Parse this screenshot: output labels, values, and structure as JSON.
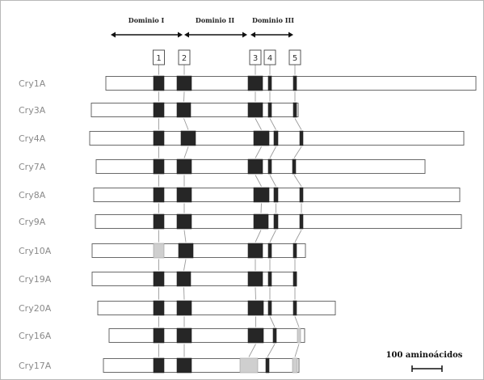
{
  "domains": [
    {
      "label": "Dominio I"
    },
    {
      "label": "Dominio II"
    },
    {
      "label": "Dominio III"
    }
  ],
  "blocks": [
    "1",
    "2",
    "3",
    "4",
    "5"
  ],
  "proteins": [
    {
      "name": "Cry1A",
      "blocks": [
        "dark",
        "dark",
        "dark",
        "dark",
        "dark"
      ]
    },
    {
      "name": "Cry3A",
      "blocks": [
        "dark",
        "dark",
        "dark",
        "dark",
        "dark"
      ]
    },
    {
      "name": "Cry4A",
      "blocks": [
        "dark",
        "dark",
        "dark",
        "dark",
        "dark"
      ]
    },
    {
      "name": "Cry7A",
      "blocks": [
        "dark",
        "dark",
        "dark",
        "dark",
        "dark"
      ]
    },
    {
      "name": "Cry8A",
      "blocks": [
        "dark",
        "dark",
        "dark",
        "dark",
        "dark"
      ]
    },
    {
      "name": "Cry9A",
      "blocks": [
        "dark",
        "dark",
        "dark",
        "dark",
        "dark"
      ]
    },
    {
      "name": "Cry10A",
      "blocks": [
        "light",
        "dark",
        "dark",
        "dark",
        "dark"
      ]
    },
    {
      "name": "Cry19A",
      "blocks": [
        "dark",
        "dark",
        "dark",
        "dark",
        "dark"
      ]
    },
    {
      "name": "Cry20A",
      "blocks": [
        "dark",
        "dark",
        "dark",
        "dark",
        "dark"
      ]
    },
    {
      "name": "Cry16A",
      "blocks": [
        "dark",
        "dark",
        "dark",
        "dark",
        "light"
      ]
    },
    {
      "name": "Cry17A",
      "blocks": [
        "dark",
        "dark",
        "light",
        "dark",
        "light"
      ]
    }
  ],
  "scale_bar": {
    "label": "100 aminoácidos"
  },
  "colors": {
    "dark_block": "#262626",
    "light_block": "#cfcfcf",
    "bar_fill": "#ffffff",
    "bar_stroke": "#5a5a5a",
    "connector": "#9a9a9a"
  }
}
